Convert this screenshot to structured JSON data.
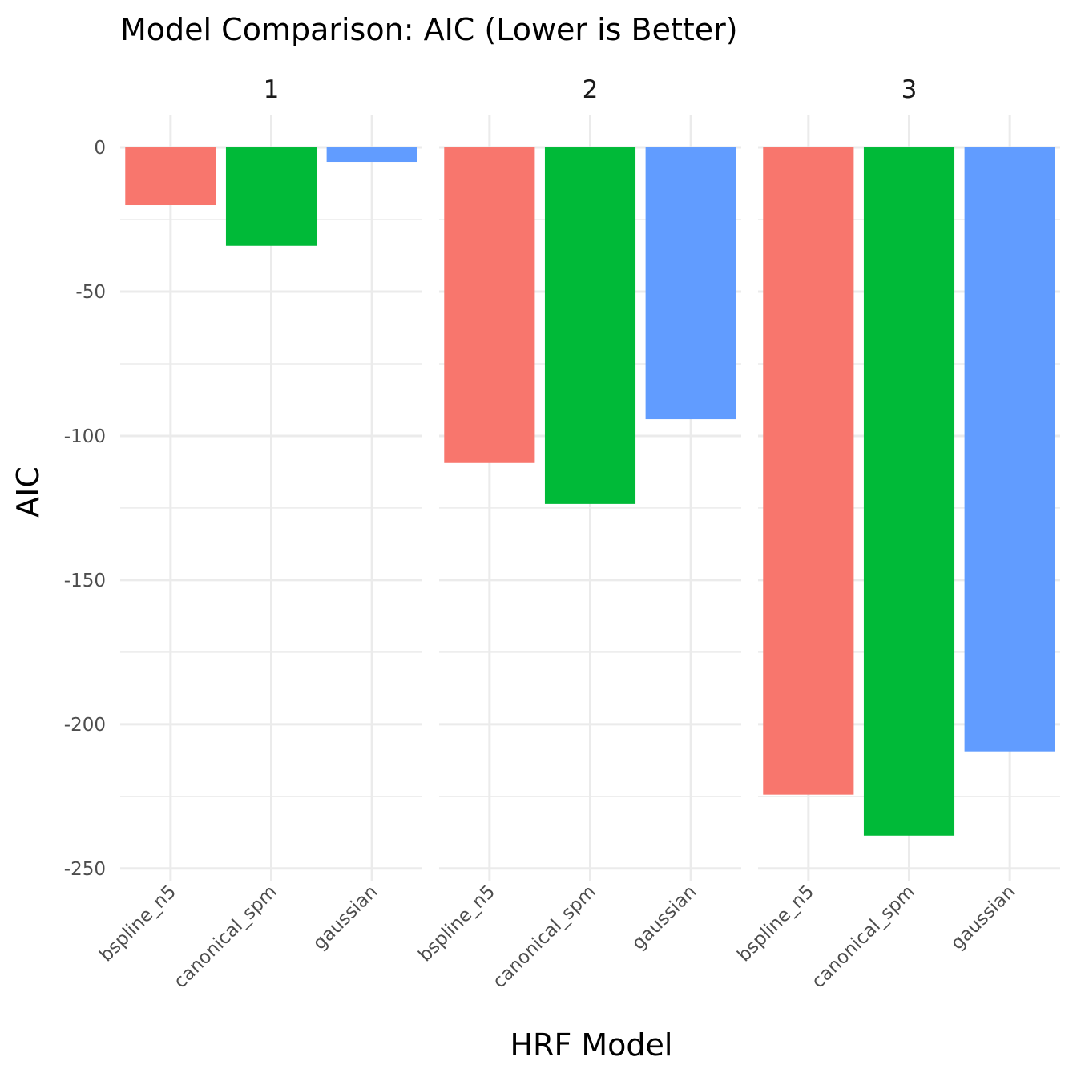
{
  "chart_data": {
    "type": "bar",
    "title": "Model Comparison: AIC (Lower is Better)",
    "xlabel": "HRF Model",
    "ylabel": "AIC",
    "ylim": [
      -254.5,
      11.4
    ],
    "yticks": [
      0,
      -50,
      -100,
      -150,
      -200,
      -250
    ],
    "ytick_labels": [
      "0",
      "-50",
      "-100",
      "-150",
      "-200",
      "-250"
    ],
    "grid": true,
    "categories": [
      "bspline_n5",
      "canonical_spm",
      "gaussian"
    ],
    "colors": [
      "#F8766D",
      "#00BA38",
      "#619CFF"
    ],
    "facets": [
      {
        "label": "1",
        "values": [
          -20,
          -34.1,
          -5
        ]
      },
      {
        "label": "2",
        "values": [
          -109.4,
          -123.6,
          -94.2
        ]
      },
      {
        "label": "3",
        "values": [
          -224.4,
          -238.6,
          -209.4
        ]
      }
    ]
  }
}
